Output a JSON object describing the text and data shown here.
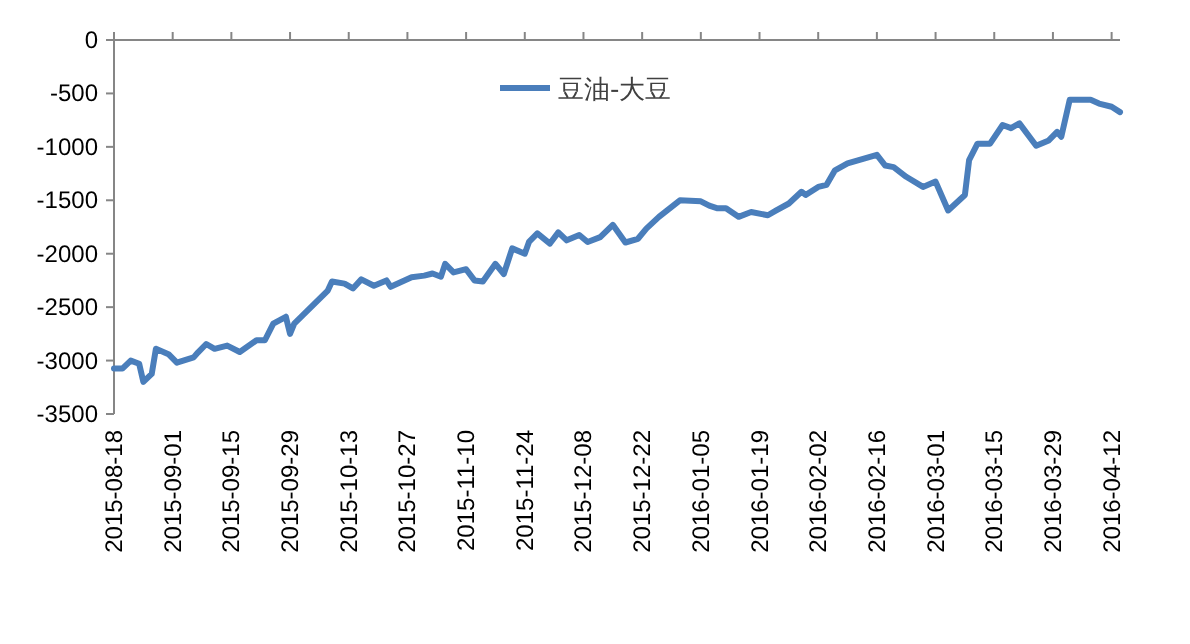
{
  "chart_data": {
    "type": "line",
    "legend": "top",
    "line_style": "solid",
    "xlim": [
      "2015-08-18",
      "2016-04-14"
    ],
    "xticks": [
      "2015-08-18",
      "2015-09-01",
      "2015-09-15",
      "2015-09-29",
      "2015-10-13",
      "2015-10-27",
      "2015-11-10",
      "2015-11-24",
      "2015-12-08",
      "2015-12-22",
      "2016-01-05",
      "2016-01-19",
      "2016-02-02",
      "2016-02-16",
      "2016-03-01",
      "2016-03-15",
      "2016-03-29",
      "2016-04-12"
    ],
    "ylim": [
      -3500,
      0
    ],
    "yticks": [
      -3500,
      -3000,
      -2500,
      -2000,
      -1500,
      -1000,
      -500,
      0
    ],
    "x": [
      "2015-08-18",
      "2015-08-20",
      "2015-08-22",
      "2015-08-24",
      "2015-08-25",
      "2015-08-27",
      "2015-08-28",
      "2015-08-31",
      "2015-09-02",
      "2015-09-06",
      "2015-09-07",
      "2015-09-09",
      "2015-09-11",
      "2015-09-14",
      "2015-09-17",
      "2015-09-21",
      "2015-09-23",
      "2015-09-25",
      "2015-09-28",
      "2015-09-29",
      "2015-09-30",
      "2015-10-04",
      "2015-10-08",
      "2015-10-09",
      "2015-10-12",
      "2015-10-14",
      "2015-10-16",
      "2015-10-19",
      "2015-10-22",
      "2015-10-23",
      "2015-10-28",
      "2015-10-31",
      "2015-11-02",
      "2015-11-04",
      "2015-11-05",
      "2015-11-07",
      "2015-11-10",
      "2015-11-12",
      "2015-11-14",
      "2015-11-17",
      "2015-11-19",
      "2015-11-21",
      "2015-11-24",
      "2015-11-25",
      "2015-11-27",
      "2015-11-30",
      "2015-12-02",
      "2015-12-04",
      "2015-12-07",
      "2015-12-09",
      "2015-12-12",
      "2015-12-15",
      "2015-12-18",
      "2015-12-21",
      "2015-12-23",
      "2015-12-26",
      "2015-12-31",
      "2016-01-05",
      "2016-01-07",
      "2016-01-09",
      "2016-01-11",
      "2016-01-14",
      "2016-01-17",
      "2016-01-21",
      "2016-01-23",
      "2016-01-26",
      "2016-01-29",
      "2016-01-30",
      "2016-02-02",
      "2016-02-04",
      "2016-02-06",
      "2016-02-09",
      "2016-02-16",
      "2016-02-18",
      "2016-02-20",
      "2016-02-23",
      "2016-02-27",
      "2016-03-01",
      "2016-03-04",
      "2016-03-08",
      "2016-03-09",
      "2016-03-11",
      "2016-03-14",
      "2016-03-17",
      "2016-03-19",
      "2016-03-21",
      "2016-03-25",
      "2016-03-28",
      "2016-03-30",
      "2016-03-31",
      "2016-04-02",
      "2016-04-07",
      "2016-04-09",
      "2016-04-12",
      "2016-04-14"
    ],
    "series": [
      {
        "name": "豆油-大豆",
        "color": "#4a7ebb",
        "values": [
          -3075,
          -3075,
          -3000,
          -3030,
          -3200,
          -3125,
          -2890,
          -2940,
          -3020,
          -2970,
          -2925,
          -2845,
          -2890,
          -2860,
          -2920,
          -2810,
          -2810,
          -2655,
          -2590,
          -2750,
          -2655,
          -2500,
          -2345,
          -2260,
          -2280,
          -2325,
          -2240,
          -2300,
          -2250,
          -2310,
          -2220,
          -2205,
          -2185,
          -2215,
          -2095,
          -2175,
          -2145,
          -2250,
          -2260,
          -2095,
          -2190,
          -1950,
          -2000,
          -1890,
          -1810,
          -1905,
          -1800,
          -1875,
          -1825,
          -1890,
          -1845,
          -1730,
          -1895,
          -1860,
          -1765,
          -1655,
          -1500,
          -1510,
          -1550,
          -1575,
          -1575,
          -1655,
          -1610,
          -1640,
          -1595,
          -1530,
          -1420,
          -1450,
          -1375,
          -1355,
          -1220,
          -1155,
          -1075,
          -1175,
          -1190,
          -1280,
          -1375,
          -1325,
          -1595,
          -1450,
          -1125,
          -970,
          -970,
          -795,
          -825,
          -780,
          -990,
          -940,
          -860,
          -905,
          -560,
          -560,
          -595,
          -625,
          -675
        ]
      }
    ]
  }
}
